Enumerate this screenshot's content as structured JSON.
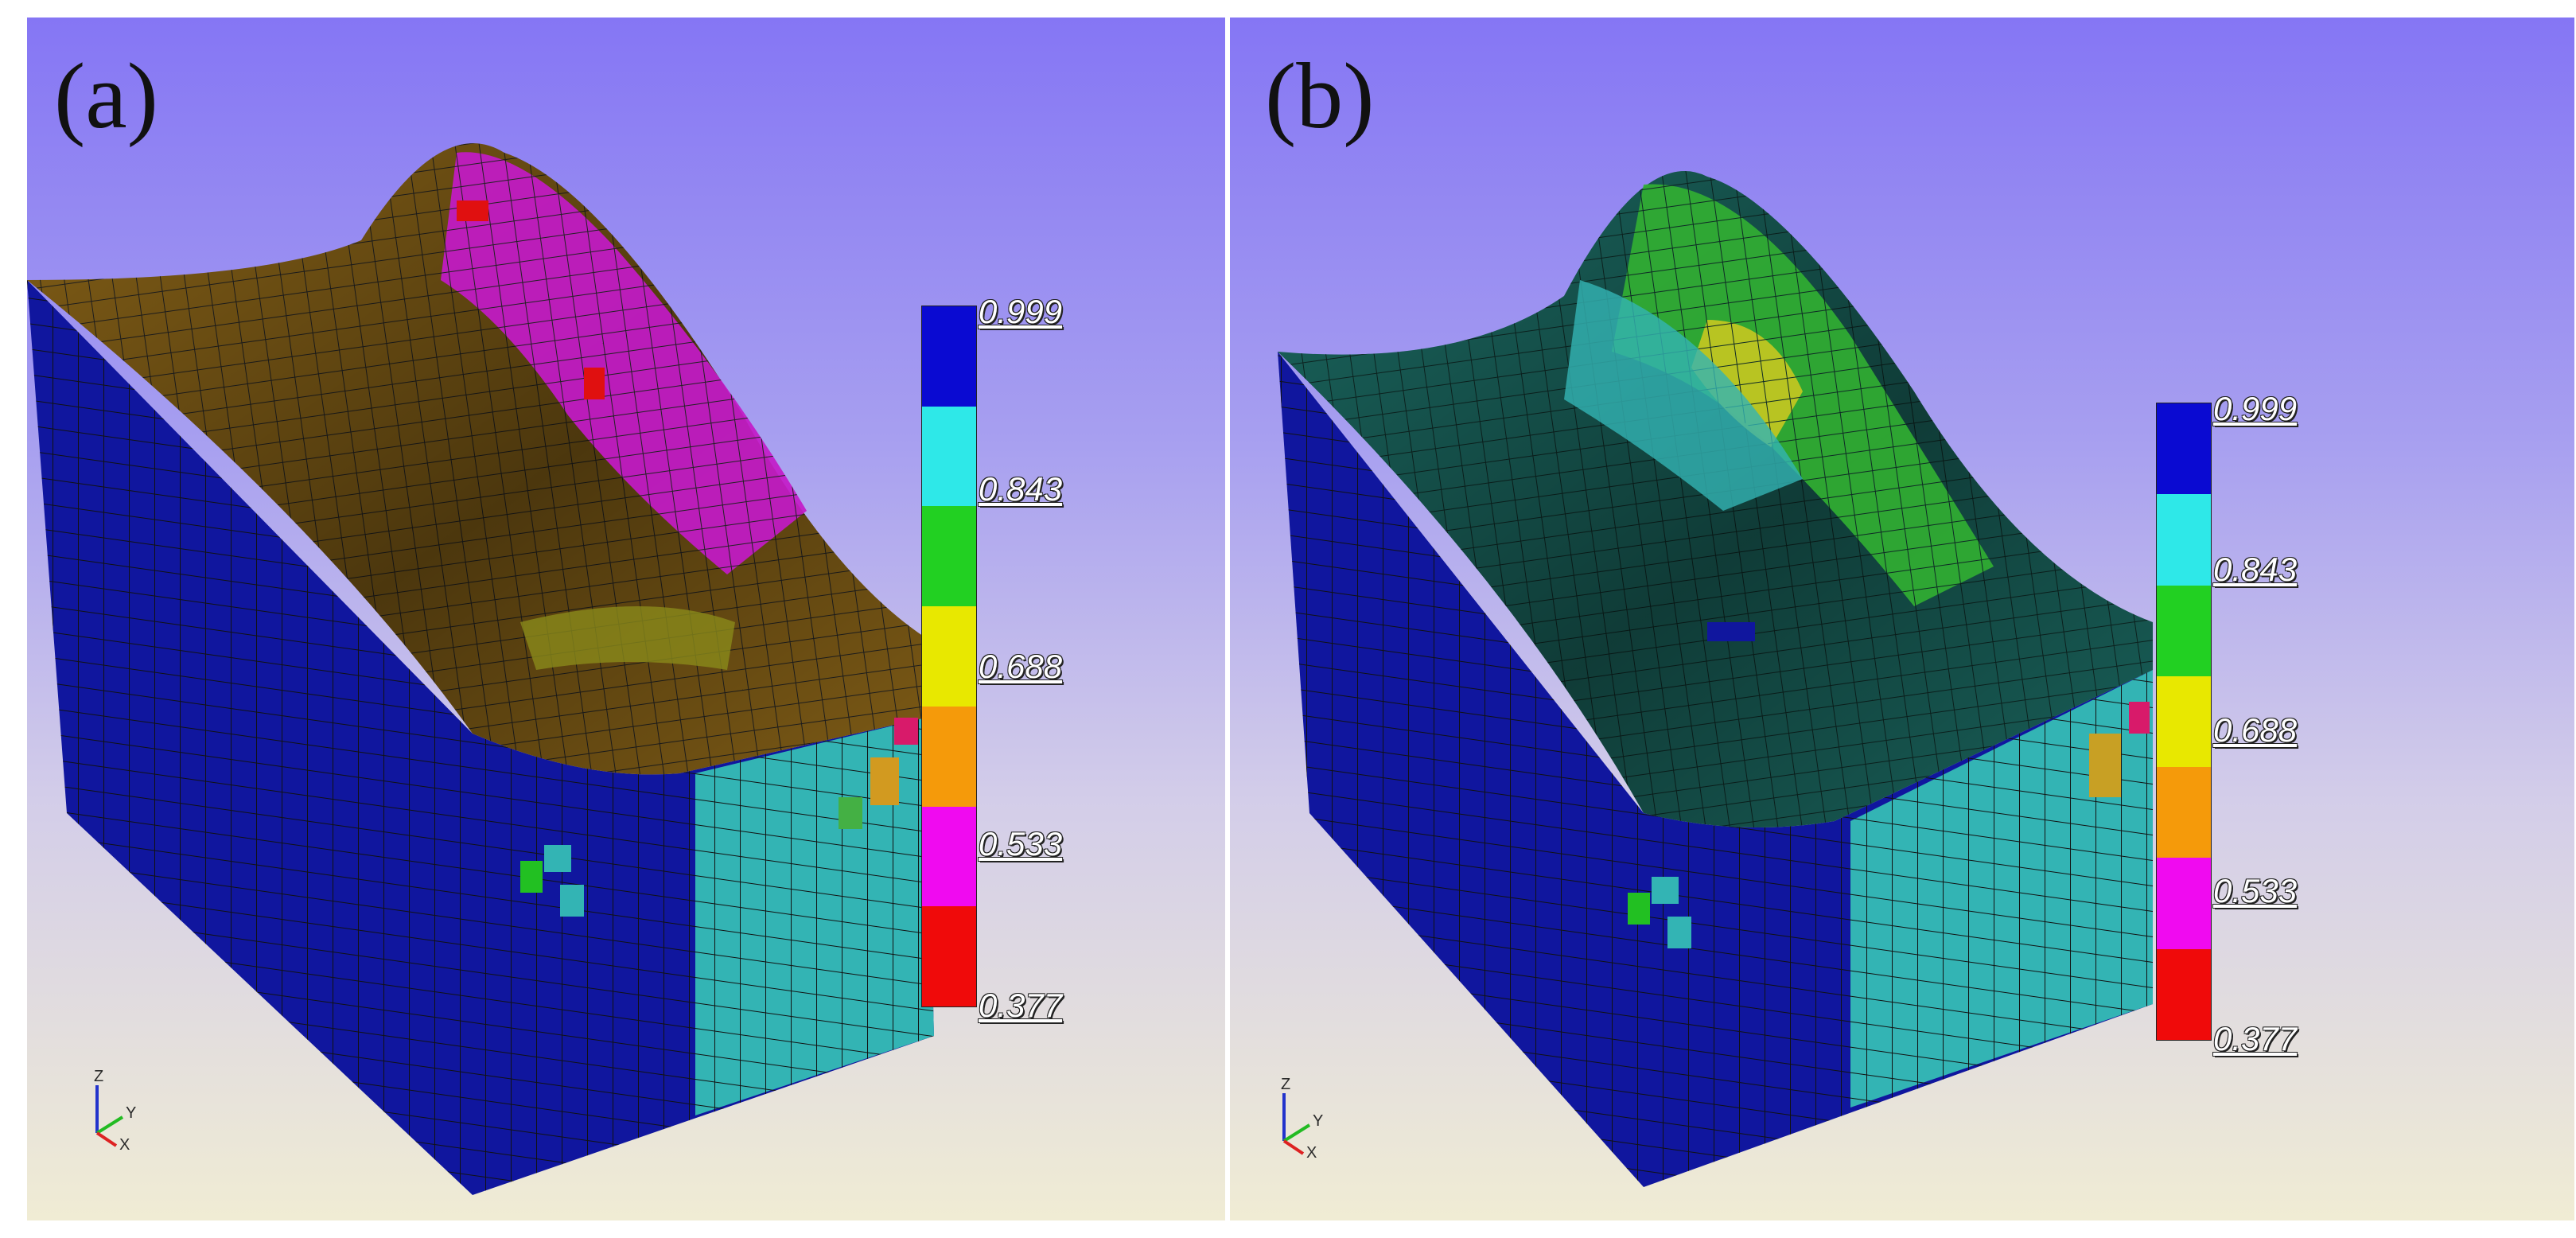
{
  "panels": [
    {
      "id": "a",
      "label": "(a)",
      "surface_color": "#8a6418",
      "legend": {
        "colors": [
          "#0a0ad2",
          "#2ee8e8",
          "#22d022",
          "#e8e800",
          "#f59a0a",
          "#f00af0",
          "#f00a0a"
        ],
        "ticks": [
          "0.999",
          "0.843",
          "0.688",
          "0.533",
          "0.377"
        ]
      },
      "axes": {
        "z": "Z",
        "y": "Y",
        "x": "X"
      }
    },
    {
      "id": "b",
      "label": "(b)",
      "surface_color": "#1c6c64",
      "legend": {
        "colors": [
          "#0a0ad2",
          "#2ee8e8",
          "#22d022",
          "#e8e800",
          "#f59a0a",
          "#f00af0",
          "#f00a0a"
        ],
        "ticks": [
          "0.999",
          "0.843",
          "0.688",
          "0.533",
          "0.377"
        ]
      },
      "axes": {
        "z": "Z",
        "y": "Y",
        "x": "X"
      }
    }
  ]
}
